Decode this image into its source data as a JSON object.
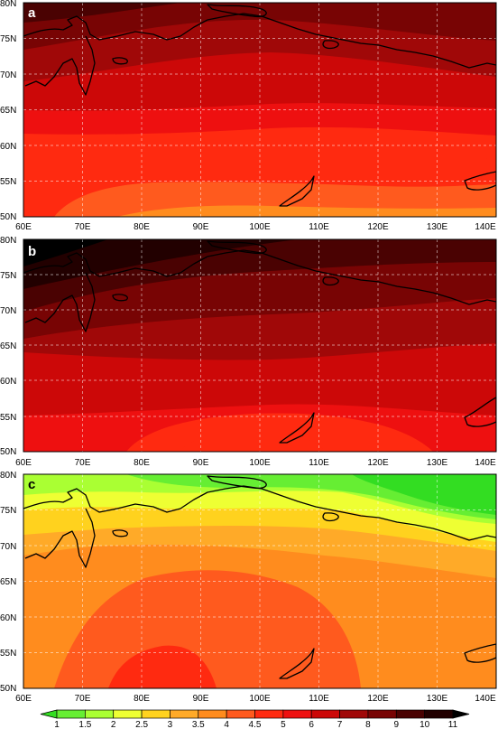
{
  "map": {
    "x_ticks": [
      "60E",
      "70E",
      "80E",
      "90E",
      "100E",
      "110E",
      "120E",
      "130E",
      "140E"
    ],
    "y_ticks": [
      "80N",
      "75N",
      "70N",
      "65N",
      "60N",
      "55N",
      "50N"
    ]
  },
  "panels": [
    {
      "label": "a"
    },
    {
      "label": "b"
    },
    {
      "label": "c"
    }
  ],
  "colorbar": {
    "levels": [
      "1",
      "1.5",
      "2",
      "2.5",
      "3",
      "3.5",
      "4",
      "4.5",
      "5",
      "6",
      "7",
      "8",
      "9",
      "10",
      "11"
    ],
    "colors": [
      "#33dd22",
      "#66ee33",
      "#aaff33",
      "#eeff33",
      "#ffd21e",
      "#ffaa28",
      "#ff8c1e",
      "#ff5a1e",
      "#ff2a10",
      "#ee1010",
      "#cc0808",
      "#a00808",
      "#780404",
      "#4a0202",
      "#220000",
      "#000000"
    ]
  }
}
